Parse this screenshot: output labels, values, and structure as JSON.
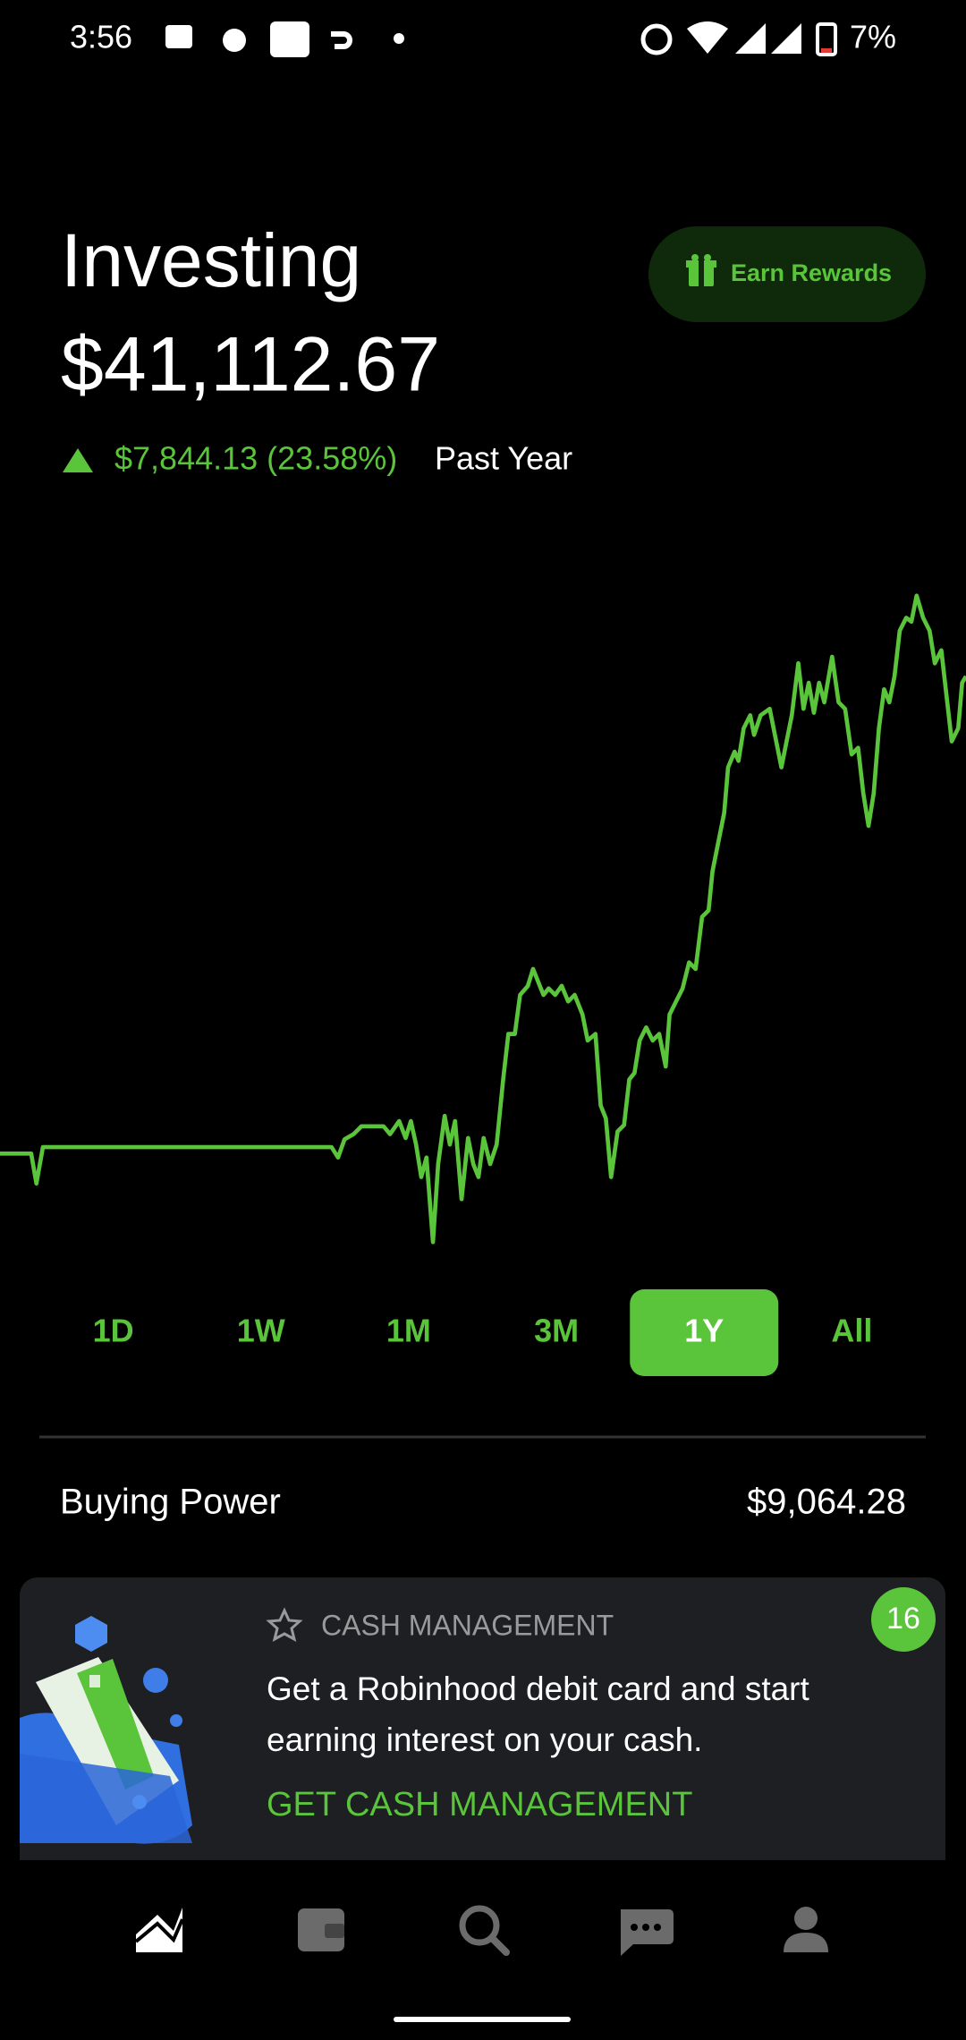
{
  "status_bar": {
    "time": "3:56",
    "battery": "7%"
  },
  "header": {
    "title": "Investing",
    "portfolio_value": "$41,112.67",
    "change": "$7,844.13 (23.58%)",
    "period": "Past Year",
    "rewards_button": "Earn Rewards"
  },
  "ranges": {
    "options": [
      "1D",
      "1W",
      "1M",
      "3M",
      "1Y",
      "All"
    ],
    "selected": "1Y"
  },
  "buying_power": {
    "label": "Buying Power",
    "value": "$9,064.28"
  },
  "promo": {
    "category": "CASH MANAGEMENT",
    "badge": 16,
    "text_lines": [
      "Get a Robinhood debit card and start",
      "earning interest on your cash."
    ],
    "cta": "GET CASH MANAGEMENT"
  }
}
